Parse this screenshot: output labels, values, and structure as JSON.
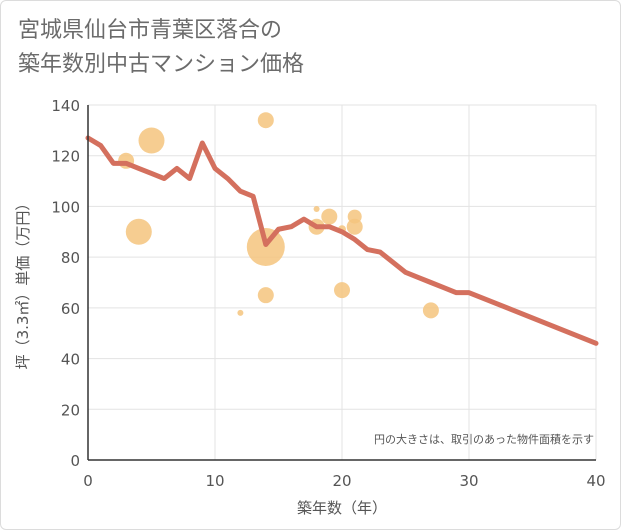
{
  "title_lines": [
    "宮城県仙台市青葉区落合の",
    "築年数別中古マンション価格"
  ],
  "chart_data": {
    "type": "scatter",
    "xlabel": "築年数（年）",
    "ylabel": "坪（3.3㎡）単価（万円）",
    "xlim": [
      0,
      40
    ],
    "ylim": [
      0,
      140
    ],
    "xticks": [
      0,
      10,
      20,
      30,
      40
    ],
    "yticks": [
      0,
      20,
      40,
      60,
      80,
      100,
      120,
      140
    ],
    "grid": true,
    "note": "円の大きさは、取引のあった物件面積を示す",
    "bubble_color": "#f5c47e",
    "line_color": "#d4705e",
    "bubbles": [
      {
        "x": 3,
        "y": 118,
        "r": 8
      },
      {
        "x": 4,
        "y": 90,
        "r": 13
      },
      {
        "x": 5,
        "y": 126,
        "r": 13
      },
      {
        "x": 12,
        "y": 58,
        "r": 3
      },
      {
        "x": 14,
        "y": 134,
        "r": 8
      },
      {
        "x": 14,
        "y": 84,
        "r": 19
      },
      {
        "x": 14,
        "y": 65,
        "r": 8
      },
      {
        "x": 18,
        "y": 99,
        "r": 3
      },
      {
        "x": 18,
        "y": 92,
        "r": 8
      },
      {
        "x": 19,
        "y": 96,
        "r": 8
      },
      {
        "x": 20,
        "y": 67,
        "r": 8
      },
      {
        "x": 20,
        "y": 91,
        "r": 4
      },
      {
        "x": 21,
        "y": 96,
        "r": 7
      },
      {
        "x": 21,
        "y": 92,
        "r": 8
      },
      {
        "x": 27,
        "y": 59,
        "r": 8
      }
    ],
    "line": {
      "x": [
        0,
        1,
        2,
        3,
        4,
        5,
        6,
        7,
        8,
        9,
        10,
        11,
        12,
        13,
        14,
        15,
        16,
        17,
        18,
        19,
        20,
        21,
        22,
        23,
        24,
        25,
        26,
        27,
        28,
        29,
        30,
        40
      ],
      "y": [
        127,
        124,
        117,
        117,
        115,
        113,
        111,
        115,
        111,
        125,
        115,
        111,
        106,
        104,
        85,
        91,
        92,
        95,
        92,
        92,
        90,
        87,
        83,
        82,
        78,
        74,
        72,
        70,
        68,
        66,
        66,
        46
      ]
    }
  }
}
